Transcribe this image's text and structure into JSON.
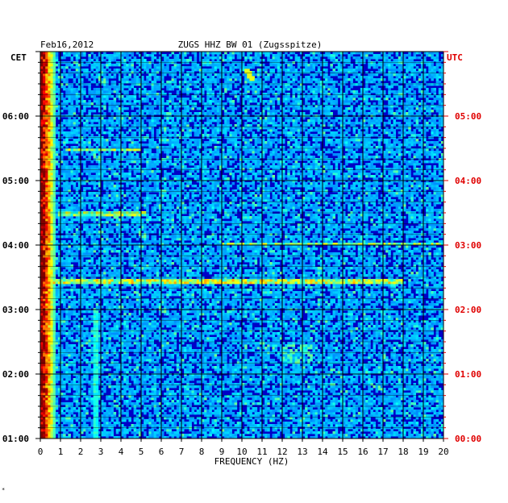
{
  "chart_data": {
    "type": "heatmap",
    "header_left": "Feb16,2012",
    "title": "ZUGS HHZ BW 01 (Zugsspitze)",
    "left_axis_title": "CET",
    "right_axis_title": "UTC",
    "xlabel": "FREQUENCY (HZ)",
    "x_ticks": [
      0,
      1,
      2,
      3,
      4,
      5,
      6,
      7,
      8,
      9,
      10,
      11,
      12,
      13,
      14,
      15,
      16,
      17,
      18,
      19,
      20
    ],
    "xlim": [
      0,
      20
    ],
    "y_range_hours_utc": [
      0,
      6
    ],
    "left_ticks": [
      {
        "hour": 5,
        "label": "06:00"
      },
      {
        "hour": 4,
        "label": "05:00"
      },
      {
        "hour": 3,
        "label": "04:00"
      },
      {
        "hour": 2,
        "label": "03:00"
      },
      {
        "hour": 1,
        "label": "02:00"
      },
      {
        "hour": 0,
        "label": "01:00"
      }
    ],
    "right_ticks": [
      {
        "hour": 5,
        "label": "05:00"
      },
      {
        "hour": 4,
        "label": "04:00"
      },
      {
        "hour": 3,
        "label": "03:00"
      },
      {
        "hour": 2,
        "label": "02:00"
      },
      {
        "hour": 1,
        "label": "01:00"
      },
      {
        "hour": 0,
        "label": "00:00"
      }
    ],
    "colors": {
      "background": "#0000c8",
      "grid": "#000000",
      "right_labels": "#e00000",
      "left_labels": "#000000"
    },
    "colormap": "jet",
    "features": [
      {
        "kind": "low-frequency-energy",
        "freq_range": [
          0,
          0.8
        ],
        "hour_range": [
          0,
          6
        ],
        "intensity": 0.85
      },
      {
        "kind": "horizontal-band",
        "hour": 2.45,
        "freq_range": [
          0,
          18
        ],
        "intensity": 0.55
      },
      {
        "kind": "horizontal-band",
        "hour": 3.02,
        "freq_range": [
          9,
          20
        ],
        "intensity": 0.5
      },
      {
        "kind": "horizontal-band",
        "hour": 3.5,
        "freq_range": [
          0.9,
          5.3
        ],
        "intensity": 0.5
      },
      {
        "kind": "horizontal-band",
        "hour": 4.48,
        "freq_range": [
          1.2,
          5
        ],
        "intensity": 0.5
      },
      {
        "kind": "vertical-line",
        "freq": 2.7,
        "hour_range": [
          0,
          2
        ],
        "intensity": 0.35
      },
      {
        "kind": "diagonal-streak",
        "from": [
          10.2,
          5.75
        ],
        "to": [
          10.5,
          5.55
        ],
        "intensity": 0.6
      },
      {
        "kind": "patch",
        "freq_range": [
          12,
          13.5
        ],
        "hour_range": [
          1.15,
          1.45
        ],
        "intensity": 0.4
      }
    ]
  }
}
